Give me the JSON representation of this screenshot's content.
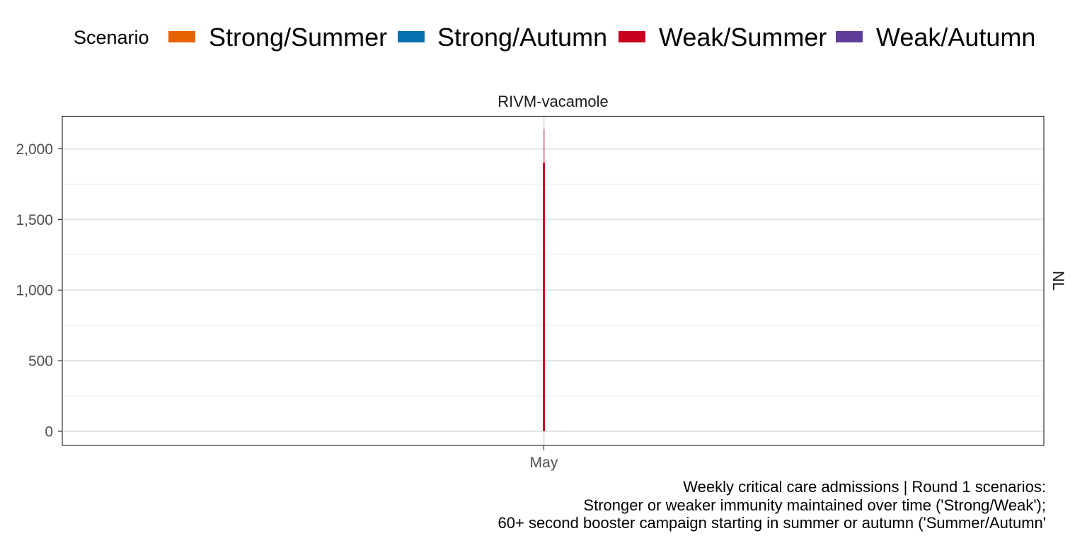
{
  "legend": {
    "title": "Scenario",
    "items": [
      {
        "label": "Strong/Summer",
        "color": "#E66101"
      },
      {
        "label": "Strong/Autumn",
        "color": "#0571B0"
      },
      {
        "label": "Weak/Summer",
        "color": "#CA0020"
      },
      {
        "label": "Weak/Autumn",
        "color": "#5E3C99"
      }
    ]
  },
  "panel": {
    "strip_title": "RIVM-vacamole",
    "facet_label": "NL"
  },
  "caption": {
    "lines": [
      "Weekly critical care admissions | Round 1 scenarios:",
      "Stronger or weaker immunity maintained over time ('Strong/Weak');",
      "60+ second booster campaign starting in summer or autumn ('Summer/Autumn'"
    ]
  },
  "chart_data": {
    "type": "area",
    "title": "",
    "facet": "RIVM-vacamole",
    "row_facet": "NL",
    "xlabel": "",
    "ylabel": "",
    "x_ticks": [
      "May"
    ],
    "y_ticks": [
      0,
      500,
      1000,
      1500,
      2000
    ],
    "y_tick_labels": [
      "0",
      "500",
      "1,000",
      "1,500",
      "2,000"
    ],
    "ylim": [
      -100,
      2230
    ],
    "grid": true,
    "legend_position": "top",
    "series": [
      {
        "name": "Weak/Summer",
        "color": "#CA0020",
        "x": [
          "May",
          "May"
        ],
        "median": [
          0,
          1900
        ],
        "upper": [
          0,
          2140
        ]
      }
    ]
  }
}
